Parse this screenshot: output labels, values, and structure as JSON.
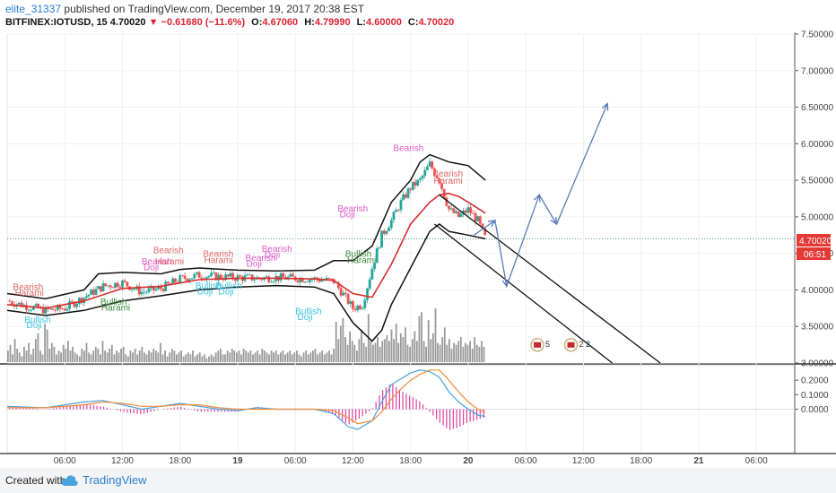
{
  "header": {
    "author": "elite_31337",
    "published": "published on TradingView.com, December 19, 2017 20:38 EST",
    "symbol": "BITFINEX:IOTUSD, 15",
    "last": "4.70020",
    "arrow": "▼",
    "change": "−0.61680 (−11.6%)",
    "o_label": "O:",
    "o_value": "4.67060",
    "h_label": "H:",
    "h_value": "4.79990",
    "l_label": "L:",
    "l_value": "4.60000",
    "c_label": "C:",
    "c_value": "4.70020"
  },
  "price_badge": {
    "value": "4.70020",
    "countdown": "06:51"
  },
  "footer": {
    "created_with": "Created with",
    "brand": "TradingView"
  },
  "colors": {
    "up": "#26a69a",
    "down": "#ef5350",
    "ma_red": "#d32f2f",
    "bands": "#111111",
    "volume": "#999999",
    "macd_blue": "#4aa3df",
    "macd_orange": "#f08c3a",
    "hist": "#e040a0",
    "forecast": "#5b7cb5",
    "label_bearish": "#e57373",
    "label_bullish": "#388e3c"
  },
  "chart_data": {
    "type": "line",
    "ticks": [
      {
        "t": 6.0,
        "label": "06:00"
      },
      {
        "t": 12.0,
        "label": "12:00"
      },
      {
        "t": 18.0,
        "label": "18:00"
      },
      {
        "t": 24.0,
        "label": "19"
      },
      {
        "t": 30.0,
        "label": "06:00"
      },
      {
        "t": 36.0,
        "label": "12:00"
      },
      {
        "t": 42.0,
        "label": "18:00"
      },
      {
        "t": 48.0,
        "label": "20"
      },
      {
        "t": 54.0,
        "label": "06:00"
      },
      {
        "t": 60.0,
        "label": "12:00"
      },
      {
        "t": 66.0,
        "label": "18:00"
      },
      {
        "t": 72.0,
        "label": "21"
      },
      {
        "t": 78.0,
        "label": "06:00"
      }
    ],
    "price_axis": {
      "range": [
        3.0,
        7.5
      ],
      "ticks": [
        "3.00000",
        "3.50000",
        "4.00000",
        "4.50000",
        "5.00000",
        "5.50000",
        "6.00000",
        "6.50000",
        "7.00000",
        "7.50000"
      ]
    },
    "macd_axis": {
      "range": [
        -0.3,
        0.3
      ],
      "ticks": [
        "0.2000",
        "0.1000",
        "0.0000"
      ]
    },
    "price": [
      [
        0,
        3.85
      ],
      [
        2,
        3.78
      ],
      [
        4,
        3.72
      ],
      [
        6,
        3.75
      ],
      [
        8,
        3.9
      ],
      [
        10,
        4.05
      ],
      [
        12,
        4.1
      ],
      [
        14,
        3.97
      ],
      [
        16,
        4.02
      ],
      [
        18,
        4.15
      ],
      [
        20,
        4.2
      ],
      [
        22,
        4.18
      ],
      [
        24,
        4.17
      ],
      [
        26,
        4.16
      ],
      [
        28,
        4.17
      ],
      [
        30,
        4.16
      ],
      [
        32,
        4.15
      ],
      [
        34,
        4.12
      ],
      [
        36,
        3.75
      ],
      [
        37,
        3.8
      ],
      [
        38,
        4.3
      ],
      [
        39,
        4.75
      ],
      [
        40,
        4.95
      ],
      [
        41,
        5.2
      ],
      [
        42,
        5.4
      ],
      [
        43,
        5.5
      ],
      [
        44,
        5.72
      ],
      [
        45,
        5.5
      ],
      [
        46,
        5.1
      ],
      [
        47,
        5.0
      ],
      [
        48,
        5.1
      ],
      [
        49,
        4.95
      ],
      [
        49.8,
        4.7
      ]
    ],
    "ma": [
      [
        0,
        3.8
      ],
      [
        4,
        3.75
      ],
      [
        8,
        3.85
      ],
      [
        12,
        4.02
      ],
      [
        16,
        4.05
      ],
      [
        20,
        4.14
      ],
      [
        24,
        4.16
      ],
      [
        28,
        4.16
      ],
      [
        32,
        4.15
      ],
      [
        34,
        4.13
      ],
      [
        36,
        3.95
      ],
      [
        38,
        3.9
      ],
      [
        40,
        4.35
      ],
      [
        42,
        4.9
      ],
      [
        44,
        5.2
      ],
      [
        45,
        5.3
      ],
      [
        46,
        5.32
      ],
      [
        47,
        5.28
      ],
      [
        48,
        5.2
      ],
      [
        49.8,
        5.05
      ]
    ],
    "upper_band": [
      [
        0,
        3.95
      ],
      [
        4,
        3.88
      ],
      [
        8,
        4.0
      ],
      [
        9.5,
        4.22
      ],
      [
        12,
        4.24
      ],
      [
        16,
        4.22
      ],
      [
        18,
        4.28
      ],
      [
        20,
        4.3
      ],
      [
        24,
        4.27
      ],
      [
        28,
        4.26
      ],
      [
        32,
        4.27
      ],
      [
        34,
        4.4
      ],
      [
        36,
        4.4
      ],
      [
        38,
        4.6
      ],
      [
        40,
        5.2
      ],
      [
        42,
        5.5
      ],
      [
        43,
        5.75
      ],
      [
        44,
        5.85
      ],
      [
        46,
        5.75
      ],
      [
        48,
        5.7
      ],
      [
        49.8,
        5.5
      ]
    ],
    "lower_band": [
      [
        0,
        3.72
      ],
      [
        4,
        3.65
      ],
      [
        8,
        3.72
      ],
      [
        12,
        3.85
      ],
      [
        16,
        3.92
      ],
      [
        20,
        4.0
      ],
      [
        24,
        4.04
      ],
      [
        28,
        4.06
      ],
      [
        32,
        4.04
      ],
      [
        34,
        3.95
      ],
      [
        36,
        3.55
      ],
      [
        38,
        3.3
      ],
      [
        39,
        3.45
      ],
      [
        40,
        3.8
      ],
      [
        42,
        4.3
      ],
      [
        44,
        4.8
      ],
      [
        45,
        4.9
      ],
      [
        46,
        4.8
      ],
      [
        48,
        4.75
      ],
      [
        49.8,
        4.7
      ]
    ],
    "volume": [
      0.3,
      0.45,
      0.2,
      0.6,
      0.35,
      0.25,
      0.15,
      0.4,
      0.3,
      0.5,
      0.2,
      0.35,
      0.6,
      0.75,
      0.3,
      0.2,
      1.0,
      0.85,
      0.35,
      0.5,
      0.4,
      0.2,
      0.3,
      0.25,
      0.45,
      0.35,
      0.55,
      0.3,
      0.4,
      0.25,
      0.2,
      0.15,
      0.35,
      0.3,
      0.5,
      0.25,
      0.2,
      0.3,
      0.4,
      0.35,
      0.2,
      0.55,
      0.3,
      0.25,
      0.35,
      0.45,
      0.2,
      0.3,
      0.25,
      0.35,
      0.4,
      0.2,
      0.15,
      0.3,
      0.25,
      0.35,
      0.2,
      0.3,
      0.4,
      0.25,
      0.2,
      0.3,
      0.25,
      0.35,
      0.3,
      0.25,
      0.5,
      0.2,
      0.3,
      0.15,
      0.25,
      0.35,
      0.3,
      0.2,
      0.25,
      0.3,
      0.15,
      0.2,
      0.25,
      0.2,
      0.3,
      0.15,
      0.2,
      0.25,
      0.15,
      0.2,
      0.1,
      0.15,
      0.2,
      0.15,
      0.25,
      0.3,
      0.35,
      0.2,
      0.2,
      0.3,
      0.25,
      0.35,
      0.3,
      0.25,
      0.3,
      0.2,
      0.35,
      0.3,
      0.25,
      0.3,
      0.2,
      0.25,
      0.3,
      0.2,
      0.35,
      0.3,
      0.25,
      0.2,
      0.3,
      0.25,
      0.3,
      0.2,
      0.25,
      0.3,
      0.2,
      0.25,
      0.3,
      0.2,
      0.25,
      0.3,
      0.2,
      0.15,
      0.25,
      0.3,
      0.2,
      0.25,
      0.3,
      0.35,
      0.2,
      0.25,
      0.3,
      0.2,
      0.25,
      0.3,
      0.2,
      0.35,
      1.05,
      0.6,
      0.95,
      1.15,
      0.65,
      0.45,
      0.8,
      0.55,
      0.45,
      0.3,
      0.6,
      0.85,
      0.5,
      0.4,
      1.25,
      0.55,
      0.45,
      0.5,
      0.65,
      0.4,
      0.55,
      0.6,
      0.7,
      0.55,
      0.85,
      0.6,
      1.0,
      0.5,
      0.75,
      0.65,
      0.9,
      0.45,
      0.4,
      0.6,
      0.8,
      0.55,
      1.2,
      1.3,
      0.55,
      0.4,
      1.1,
      0.6,
      0.75,
      1.4,
      0.5,
      0.45,
      0.65,
      0.9,
      0.45,
      0.6,
      0.35,
      0.5,
      0.45,
      0.55,
      0.65,
      0.4,
      0.5,
      0.45,
      0.55,
      0.35,
      0.65,
      0.45,
      0.4,
      0.55,
      0.4
    ],
    "macd": [
      [
        0,
        0.02
      ],
      [
        4,
        0.01
      ],
      [
        8,
        0.05
      ],
      [
        10,
        0.06
      ],
      [
        12,
        0.03
      ],
      [
        14,
        0.0
      ],
      [
        16,
        0.02
      ],
      [
        18,
        0.04
      ],
      [
        20,
        0.02
      ],
      [
        22,
        0.0
      ],
      [
        24,
        -0.01
      ],
      [
        26,
        0.01
      ],
      [
        28,
        0.0
      ],
      [
        30,
        0.0
      ],
      [
        32,
        0.0
      ],
      [
        34,
        -0.03
      ],
      [
        35.5,
        -0.12
      ],
      [
        36.5,
        -0.14
      ],
      [
        38,
        -0.08
      ],
      [
        39,
        0.05
      ],
      [
        40,
        0.17
      ],
      [
        41,
        0.21
      ],
      [
        42,
        0.25
      ],
      [
        43,
        0.27
      ],
      [
        44,
        0.26
      ],
      [
        45,
        0.22
      ],
      [
        46,
        0.12
      ],
      [
        47,
        0.05
      ],
      [
        48,
        0.0
      ],
      [
        49,
        -0.04
      ],
      [
        49.8,
        -0.05
      ]
    ],
    "signal": [
      [
        0,
        0.01
      ],
      [
        4,
        0.01
      ],
      [
        8,
        0.03
      ],
      [
        10,
        0.05
      ],
      [
        12,
        0.04
      ],
      [
        14,
        0.02
      ],
      [
        16,
        0.02
      ],
      [
        18,
        0.03
      ],
      [
        20,
        0.03
      ],
      [
        22,
        0.01
      ],
      [
        24,
        0.0
      ],
      [
        26,
        0.0
      ],
      [
        28,
        0.0
      ],
      [
        30,
        0.0
      ],
      [
        32,
        0.0
      ],
      [
        34,
        -0.01
      ],
      [
        35.5,
        -0.06
      ],
      [
        36.5,
        -0.1
      ],
      [
        38,
        -0.08
      ],
      [
        39,
        -0.02
      ],
      [
        40,
        0.07
      ],
      [
        41,
        0.14
      ],
      [
        42,
        0.2
      ],
      [
        43,
        0.24
      ],
      [
        44,
        0.27
      ],
      [
        45,
        0.27
      ],
      [
        46,
        0.2
      ],
      [
        47,
        0.12
      ],
      [
        48,
        0.05
      ],
      [
        49,
        0.0
      ],
      [
        49.8,
        -0.02
      ]
    ],
    "forecast_path": [
      [
        48.6,
        4.75
      ],
      [
        50.8,
        4.95
      ],
      [
        52,
        4.05
      ],
      [
        55.4,
        5.3
      ],
      [
        57.2,
        4.9
      ],
      [
        62.5,
        6.55
      ]
    ],
    "channel_lines": [
      [
        [
          45,
          5.3
        ],
        [
          68,
          3.0
        ]
      ],
      [
        [
          44.5,
          4.9
        ],
        [
          63,
          3.0
        ]
      ]
    ],
    "labels": [
      {
        "text": "Bearish",
        "t": 0.6,
        "p": 4.0,
        "kind": "bearish"
      },
      {
        "text": "Harami",
        "t": 0.8,
        "p": 3.92,
        "kind": "bearish"
      },
      {
        "text": "Bullish",
        "t": 1.8,
        "p": 3.55,
        "kind": "bullish_doji"
      },
      {
        "text": "Doji",
        "t": 2.0,
        "p": 3.48,
        "kind": "bullish_doji"
      },
      {
        "text": "Bullish",
        "t": 9.7,
        "p": 3.8,
        "kind": "bullish"
      },
      {
        "text": "Harami",
        "t": 9.8,
        "p": 3.72,
        "kind": "bullish"
      },
      {
        "text": "Bearish",
        "t": 15.2,
        "p": 4.5,
        "kind": "bearish"
      },
      {
        "text": "Bearish",
        "t": 14.0,
        "p": 4.35,
        "kind": "bearish_doji"
      },
      {
        "text": "Harami",
        "t": 15.4,
        "p": 4.35,
        "kind": "bearish"
      },
      {
        "text": "Doji",
        "t": 14.2,
        "p": 4.27,
        "kind": "bearish_doji"
      },
      {
        "text": "Bearish",
        "t": 20.4,
        "p": 4.45,
        "kind": "bearish"
      },
      {
        "text": "Harami",
        "t": 20.5,
        "p": 4.37,
        "kind": "bearish"
      },
      {
        "text": "Bearish",
        "t": 24.8,
        "p": 4.4,
        "kind": "bearish_doji"
      },
      {
        "text": "Doji",
        "t": 24.9,
        "p": 4.32,
        "kind": "bearish_doji"
      },
      {
        "text": "Bullish",
        "t": 19.6,
        "p": 4.02,
        "kind": "bullish_doji"
      },
      {
        "text": "Doji",
        "t": 19.8,
        "p": 3.94,
        "kind": "bullish_doji"
      },
      {
        "text": "Bullish",
        "t": 21.7,
        "p": 4.02,
        "kind": "bullish_doji"
      },
      {
        "text": "Doji",
        "t": 22.0,
        "p": 3.94,
        "kind": "bullish_doji"
      },
      {
        "text": "Bearish",
        "t": 26.5,
        "p": 4.52,
        "kind": "bearish_doji"
      },
      {
        "text": "Doji",
        "t": 26.8,
        "p": 4.44,
        "kind": "bearish_doji"
      },
      {
        "text": "Bullish",
        "t": 30.0,
        "p": 3.67,
        "kind": "bullish_doji"
      },
      {
        "text": "Doji",
        "t": 30.2,
        "p": 3.59,
        "kind": "bullish_doji"
      },
      {
        "text": "Bearish",
        "t": 34.4,
        "p": 5.07,
        "kind": "bearish_doji"
      },
      {
        "text": "Doji",
        "t": 34.6,
        "p": 4.99,
        "kind": "bearish_doji"
      },
      {
        "text": "Bullish",
        "t": 35.2,
        "p": 4.45,
        "kind": "bullish"
      },
      {
        "text": "Harami",
        "t": 35.4,
        "p": 4.37,
        "kind": "bullish"
      },
      {
        "text": "Bearish",
        "t": 40.2,
        "p": 5.9,
        "kind": "bearish_doji"
      },
      {
        "text": "Bearish",
        "t": 44.3,
        "p": 5.55,
        "kind": "bearish"
      },
      {
        "text": "Harami",
        "t": 44.4,
        "p": 5.45,
        "kind": "bearish"
      }
    ],
    "events": [
      {
        "label": "5",
        "t": 55.2,
        "p": 3.15
      },
      {
        "label": "2 2",
        "t": 58.7,
        "p": 3.15
      }
    ]
  }
}
